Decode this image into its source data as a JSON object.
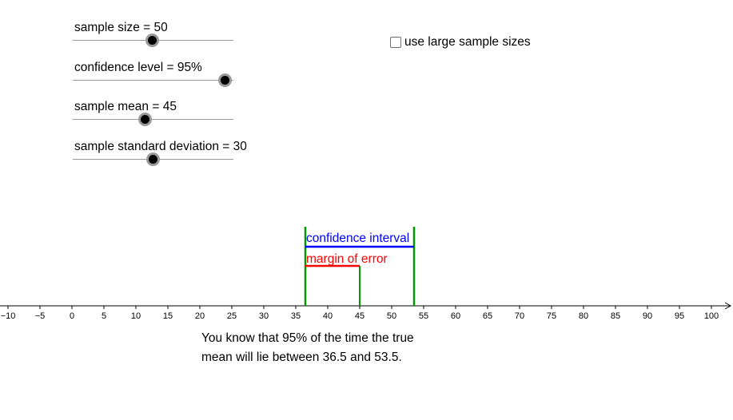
{
  "sliders": [
    {
      "label": "sample size = 50",
      "value": 50,
      "min": 1,
      "max": 100
    },
    {
      "label": "confidence level = 95%",
      "value": 95,
      "min": 0,
      "max": 100
    },
    {
      "label": "sample mean = 45",
      "value": 45,
      "min": 0,
      "max": 100
    },
    {
      "label": "sample standard deviation = 30",
      "value": 30,
      "min": 0,
      "max": 60
    }
  ],
  "checkbox": {
    "label": "use large sample sizes",
    "checked": false
  },
  "number_line": {
    "ticks": [
      "−10",
      "−5",
      "0",
      "5",
      "10",
      "15",
      "20",
      "25",
      "30",
      "35",
      "40",
      "45",
      "50",
      "55",
      "60",
      "65",
      "70",
      "75",
      "80",
      "85",
      "90",
      "95",
      "100"
    ],
    "min": -10,
    "max": 100,
    "step": 5
  },
  "interval": {
    "lower": 36.5,
    "mean": 45,
    "upper": 53.5,
    "ci_label": "confidence interval",
    "moe_label": "margin of error",
    "colors": {
      "ci": "#0000ff",
      "moe": "#ff0000",
      "bounds": "#009900"
    }
  },
  "caption": {
    "line1": "You know that 95% of the time the true",
    "line2": "mean will lie between 36.5 and 53.5."
  }
}
